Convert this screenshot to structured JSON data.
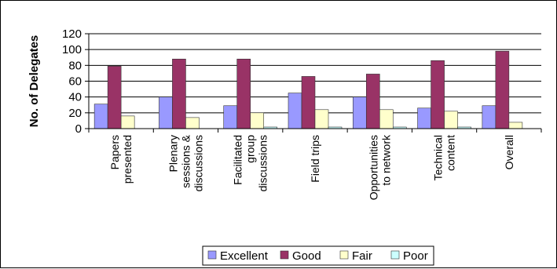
{
  "chart_data": {
    "type": "bar",
    "title": "",
    "xlabel": "",
    "ylabel": "No. of Delegates",
    "ylim": [
      0,
      120
    ],
    "yticks": [
      "0",
      "20",
      "40",
      "60",
      "80",
      "100",
      "120"
    ],
    "grid": true,
    "legend_position": "bottom",
    "categories": [
      [
        "Papers",
        "presented"
      ],
      [
        "Plenary",
        "sessions &",
        "discussions"
      ],
      [
        "Facilitated",
        "group",
        "discussions"
      ],
      [
        "Field trips"
      ],
      [
        "Opportunities",
        "to network"
      ],
      [
        "Technical",
        "content"
      ],
      [
        "Overall"
      ]
    ],
    "series": [
      {
        "name": "Excellent",
        "color": "#9999ff",
        "values": [
          31,
          40,
          29,
          45,
          40,
          26,
          29
        ]
      },
      {
        "name": "Good",
        "color": "#993366",
        "values": [
          79,
          88,
          88,
          66,
          69,
          86,
          98
        ]
      },
      {
        "name": "Fair",
        "color": "#ffffcc",
        "values": [
          16,
          14,
          20,
          24,
          24,
          22,
          8
        ]
      },
      {
        "name": "Poor",
        "color": "#ccffff",
        "values": [
          0,
          0,
          2,
          2,
          2,
          2,
          0
        ]
      }
    ]
  }
}
